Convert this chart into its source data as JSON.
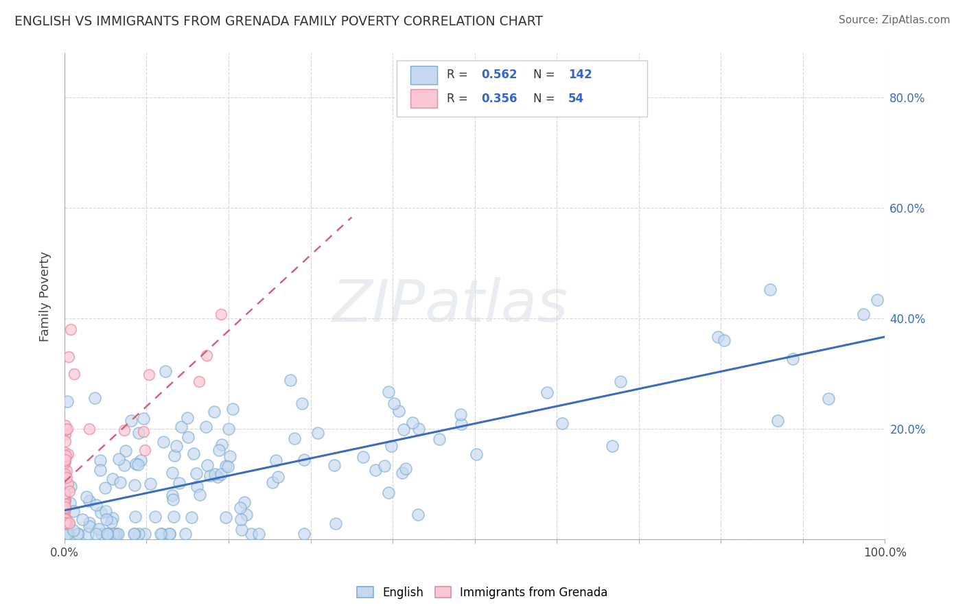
{
  "title": "ENGLISH VS IMMIGRANTS FROM GRENADA FAMILY POVERTY CORRELATION CHART",
  "source": "Source: ZipAtlas.com",
  "ylabel": "Family Poverty",
  "xlim": [
    0,
    1.0
  ],
  "ylim": [
    0,
    0.88
  ],
  "xtick_positions": [
    0.0,
    0.1,
    0.2,
    0.3,
    0.4,
    0.5,
    0.6,
    0.7,
    0.8,
    0.9,
    1.0
  ],
  "xtick_labels": [
    "0.0%",
    "",
    "",
    "",
    "",
    "",
    "",
    "",
    "",
    "",
    "100.0%"
  ],
  "ytick_positions": [
    0.0,
    0.2,
    0.4,
    0.6,
    0.8
  ],
  "ytick_labels": [
    "",
    "20.0%",
    "40.0%",
    "60.0%",
    "80.0%"
  ],
  "english_R": 0.562,
  "english_N": 142,
  "grenada_R": 0.356,
  "grenada_N": 54,
  "english_face_color": "#c5d8f0",
  "english_edge_color": "#7aadd4",
  "grenada_face_color": "#f9c8d4",
  "grenada_edge_color": "#e8899a",
  "english_line_color": "#3a6bbf",
  "grenada_line_color": "#d4607a",
  "background_color": "#ffffff",
  "grid_color": "#cccccc",
  "watermark": "ZIPatlas",
  "legend_box_color": "#eeeeee",
  "legend_border_color": "#cccccc",
  "text_color": "#444444",
  "axis_color": "#aaaaaa",
  "right_label_color": "#3a6bbf",
  "source_color": "#666666"
}
